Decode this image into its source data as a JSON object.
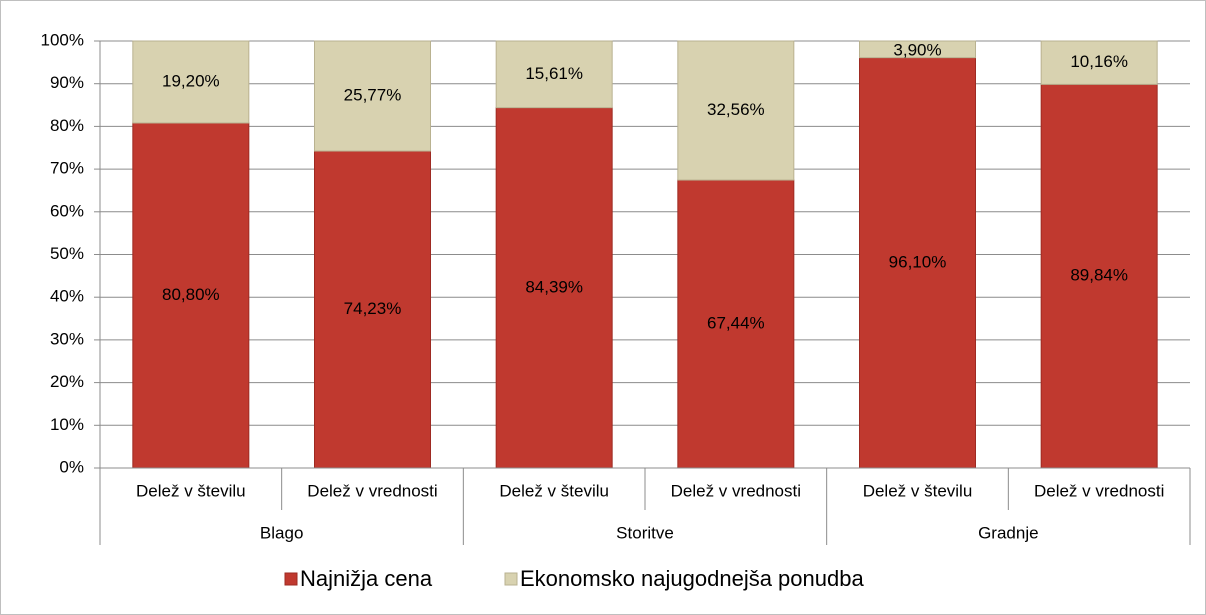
{
  "chart_data": {
    "type": "stacked_bar",
    "categories": [
      "Delež v številu",
      "Delež v vrednosti",
      "Delež v številu",
      "Delež v vrednosti",
      "Delež v številu",
      "Delež v vrednosti"
    ],
    "groups": [
      "Blago",
      "Storitve",
      "Gradnje"
    ],
    "series": [
      {
        "name": "Najnižja cena",
        "color": "#c0392f",
        "values": [
          80.8,
          74.23,
          84.39,
          67.44,
          96.1,
          89.84
        ],
        "value_labels": [
          "80,80%",
          "74,23%",
          "84,39%",
          "67,44%",
          "96,10%",
          "89,84%"
        ]
      },
      {
        "name": "Ekonomsko najugodnejša ponudba",
        "color": "#d8d2b0",
        "values": [
          19.2,
          25.77,
          15.61,
          32.56,
          3.9,
          10.16
        ],
        "value_labels": [
          "19,20%",
          "25,77%",
          "15,61%",
          "32,56%",
          "3,90%",
          "10,16%"
        ]
      }
    ],
    "ylim": [
      0,
      100
    ],
    "yticks": [
      {
        "value": 0,
        "label": "0%"
      },
      {
        "value": 10,
        "label": "10%"
      },
      {
        "value": 20,
        "label": "20%"
      },
      {
        "value": 30,
        "label": "30%"
      },
      {
        "value": 40,
        "label": "40%"
      },
      {
        "value": 50,
        "label": "50%"
      },
      {
        "value": 60,
        "label": "60%"
      },
      {
        "value": 70,
        "label": "70%"
      },
      {
        "value": 80,
        "label": "80%"
      },
      {
        "value": 90,
        "label": "90%"
      },
      {
        "value": 100,
        "label": "100%"
      }
    ],
    "grid": true,
    "legend": "bottom"
  }
}
